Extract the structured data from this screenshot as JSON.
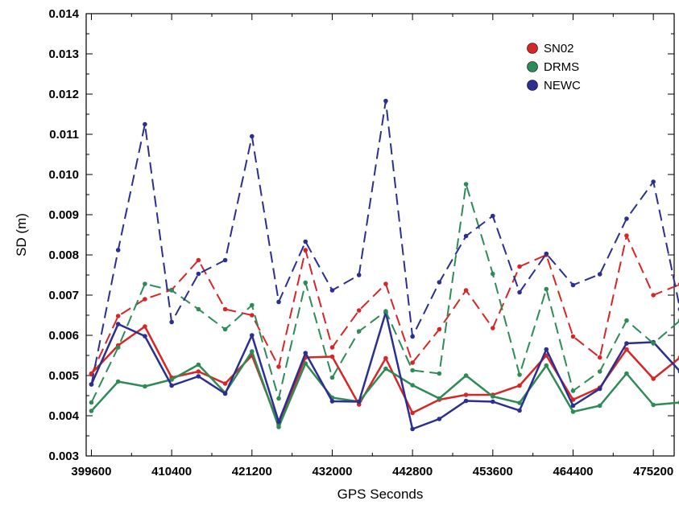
{
  "chart_data": {
    "type": "line",
    "xlabel": "GPS Seconds",
    "ylabel": "SD (m)",
    "xlim": [
      398900,
      478000
    ],
    "ylim": [
      0.003,
      0.014
    ],
    "x_ticks": [
      399600,
      410400,
      421200,
      432000,
      442800,
      453600,
      464400,
      475200
    ],
    "x_tick_labels": [
      "399600",
      "410400",
      "421200",
      "432000",
      "442800",
      "453600",
      "464400",
      "475200"
    ],
    "y_ticks": [
      0.003,
      0.004,
      0.005,
      0.006,
      0.007,
      0.008,
      0.009,
      0.01,
      0.011,
      0.012,
      0.013,
      0.014
    ],
    "y_tick_labels": [
      "0.003",
      "0.004",
      "0.005",
      "0.006",
      "0.007",
      "0.008",
      "0.009",
      "0.010",
      "0.011",
      "0.012",
      "0.013",
      "0.014"
    ],
    "legend_position": "top-right",
    "grid": false,
    "x": [
      399600,
      403200,
      406800,
      410400,
      414000,
      417600,
      421200,
      424800,
      428400,
      432000,
      435600,
      439200,
      442800,
      446400,
      450000,
      453600,
      457200,
      460800,
      464400,
      468000,
      471600,
      475200,
      478800
    ],
    "series": [
      {
        "name": "SN02",
        "color": "#d62728",
        "style": "solid",
        "values": [
          0.00505,
          0.00575,
          0.00622,
          0.00495,
          0.0051,
          0.0048,
          0.0055,
          0.00378,
          0.00545,
          0.00547,
          0.00428,
          0.00543,
          0.00407,
          0.0044,
          0.00452,
          0.00452,
          0.00475,
          0.0055,
          0.0044,
          0.0047,
          0.00565,
          0.00492,
          0.00545
        ]
      },
      {
        "name": "DRMS",
        "color": "#2e8b57",
        "style": "solid",
        "values": [
          0.00412,
          0.00485,
          0.00473,
          0.0049,
          0.00527,
          0.00457,
          0.0056,
          0.00372,
          0.0053,
          0.00445,
          0.00435,
          0.00517,
          0.00476,
          0.00443,
          0.005,
          0.00448,
          0.00432,
          0.00525,
          0.0041,
          0.00425,
          0.00505,
          0.00427,
          0.00433
        ]
      },
      {
        "name": "NEWC",
        "color": "#2b2f8f",
        "style": "solid",
        "values": [
          0.00478,
          0.00628,
          0.00598,
          0.00475,
          0.00498,
          0.00455,
          0.006,
          0.00385,
          0.00556,
          0.00436,
          0.00435,
          0.00657,
          0.00367,
          0.00392,
          0.00437,
          0.00435,
          0.00413,
          0.00565,
          0.00425,
          0.00467,
          0.0058,
          0.00583,
          0.0051
        ]
      },
      {
        "color": "#d62728",
        "style": "dashed",
        "values": [
          0.00503,
          0.00648,
          0.0069,
          0.00713,
          0.00787,
          0.00665,
          0.0065,
          0.00522,
          0.00812,
          0.0057,
          0.00662,
          0.00728,
          0.00532,
          0.00615,
          0.00712,
          0.00618,
          0.00771,
          0.008,
          0.00597,
          0.00545,
          0.00848,
          0.007,
          0.00727
        ]
      },
      {
        "color": "#2e8b57",
        "style": "dashed",
        "values": [
          0.00433,
          0.0057,
          0.00728,
          0.00712,
          0.00665,
          0.00615,
          0.00675,
          0.00443,
          0.00731,
          0.00495,
          0.0061,
          0.0066,
          0.00513,
          0.00505,
          0.00976,
          0.00753,
          0.00502,
          0.00715,
          0.00462,
          0.0051,
          0.00637,
          0.0058,
          0.00637
        ]
      },
      {
        "color": "#2b2f8f",
        "style": "dashed",
        "values": [
          0.00478,
          0.00812,
          0.01125,
          0.00633,
          0.00753,
          0.00787,
          0.01095,
          0.00683,
          0.00833,
          0.00712,
          0.0075,
          0.01183,
          0.00597,
          0.00732,
          0.00847,
          0.00897,
          0.00707,
          0.00803,
          0.00725,
          0.00752,
          0.0089,
          0.00982,
          0.00665
        ]
      }
    ]
  }
}
